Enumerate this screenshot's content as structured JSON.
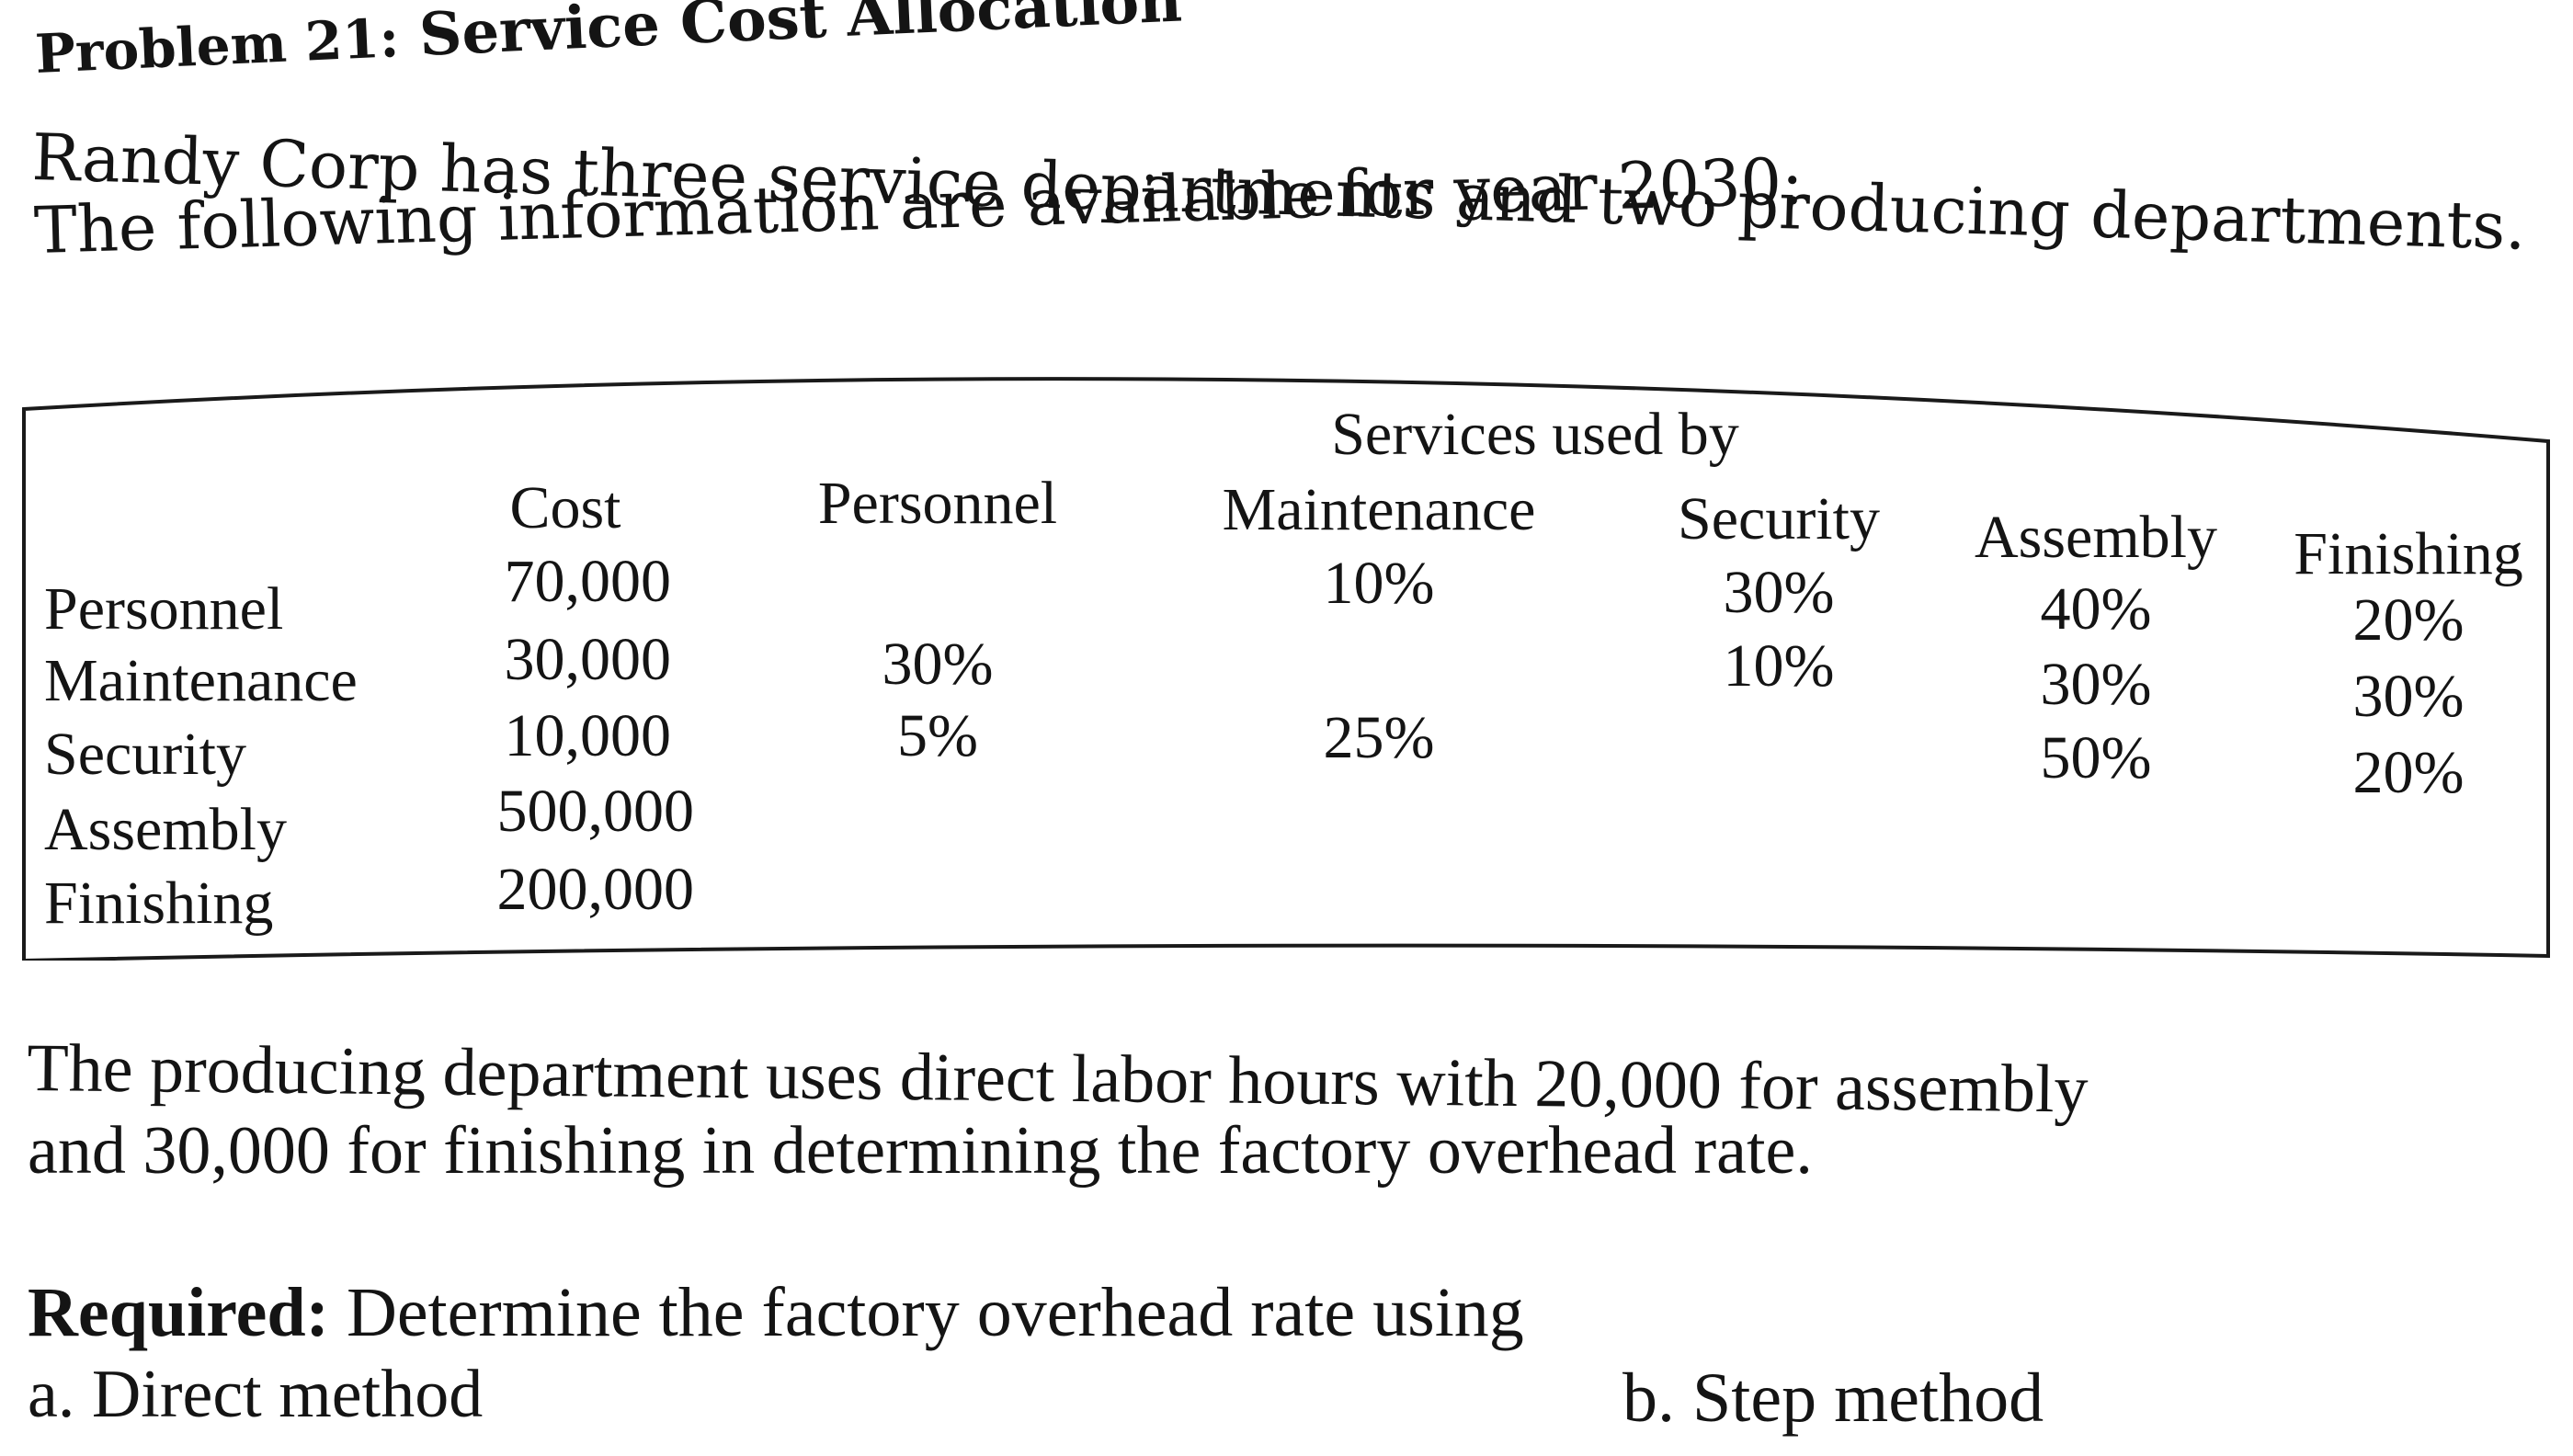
{
  "heading": {
    "problem_label": "Problem 21:",
    "title": "Service Cost Allocation"
  },
  "intro": {
    "line1": "Randy Corp has three service departments and two producing departments.",
    "line2": "The following information are available for year 2030:"
  },
  "table": {
    "group_header": "Services used by",
    "columns": {
      "cost": "Cost",
      "personnel": "Personnel",
      "maintenance": "Maintenance",
      "security": "Security",
      "assembly": "Assembly",
      "finishing": "Finishing"
    },
    "rows": [
      {
        "dept": "Personnel",
        "cost": "70,000",
        "personnel": "",
        "maintenance": "10%",
        "security": "30%",
        "assembly": "40%",
        "finishing": "20%"
      },
      {
        "dept": "Maintenance",
        "cost": "30,000",
        "personnel": "30%",
        "maintenance": "",
        "security": "10%",
        "assembly": "30%",
        "finishing": "30%"
      },
      {
        "dept": "Security",
        "cost": "10,000",
        "personnel": "5%",
        "maintenance": "25%",
        "security": "",
        "assembly": "50%",
        "finishing": "20%"
      },
      {
        "dept": "Assembly",
        "cost": "500,000",
        "personnel": "",
        "maintenance": "",
        "security": "",
        "assembly": "",
        "finishing": ""
      },
      {
        "dept": "Finishing",
        "cost": "200,000",
        "personnel": "",
        "maintenance": "",
        "security": "",
        "assembly": "",
        "finishing": ""
      }
    ]
  },
  "footnote": {
    "line1": "The producing department uses direct labor hours with 20,000 for assembly",
    "line2": "and 30,000 for finishing in determining the factory overhead rate."
  },
  "required": {
    "label": "Required:",
    "text": " Determine the factory overhead rate using",
    "option_a": "a. Direct method",
    "option_b": "b. Step method"
  }
}
